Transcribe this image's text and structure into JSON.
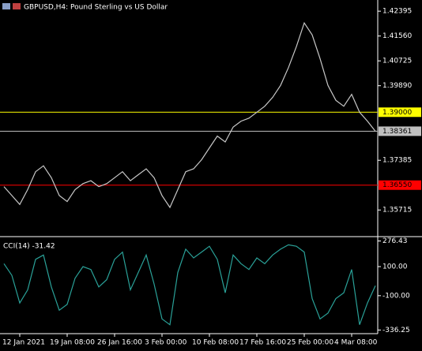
{
  "chart_data": [
    {
      "type": "line",
      "title": "GBPUSD,H4: Pound Sterling vs US Dollar",
      "categories": [
        null,
        null,
        "12 Jan 2021",
        null,
        null,
        null,
        null,
        null,
        "19 Jan 08:00",
        null,
        null,
        null,
        null,
        null,
        "26 Jan 16:00",
        null,
        null,
        null,
        null,
        null,
        "3 Feb 00:00",
        null,
        null,
        null,
        null,
        null,
        "10 Feb 08:00",
        null,
        null,
        null,
        null,
        null,
        "17 Feb 16:00",
        null,
        null,
        null,
        null,
        null,
        "25 Feb 00:00",
        null,
        null,
        null,
        null,
        null,
        "4 Mar 08:00",
        null,
        null,
        null
      ],
      "series": [
        {
          "color": "#c8c8c8",
          "values": [
            1.365,
            1.362,
            1.359,
            1.364,
            1.37,
            1.372,
            1.368,
            1.362,
            1.36,
            1.364,
            1.366,
            1.367,
            1.365,
            1.366,
            1.368,
            1.37,
            1.367,
            1.369,
            1.371,
            1.368,
            1.362,
            1.358,
            1.364,
            1.37,
            1.371,
            1.374,
            1.378,
            1.382,
            1.38,
            1.385,
            1.387,
            1.388,
            1.39,
            1.392,
            1.395,
            1.399,
            1.405,
            1.412,
            1.42,
            1.416,
            1.408,
            1.399,
            1.394,
            1.392,
            1.396,
            1.39,
            1.387,
            1.3836
          ]
        }
      ],
      "ylim": [
        1.3482,
        1.4277
      ],
      "yticks": [
        1.42395,
        {
          "value": 1.4156,
          "label": "1.41560"
        },
        1.40725,
        {
          "value": 1.3989,
          "label": "1.39890"
        },
        1.37385,
        1.35715
      ],
      "levels": [
        {
          "value": 1.39,
          "label": "1.39000",
          "color": "#ffff00"
        },
        {
          "value": 1.38361,
          "label": "1.38361",
          "color": "#c0c0c0"
        },
        {
          "value": 1.3655,
          "label": "1.36550",
          "color": "#ff0000"
        }
      ]
    },
    {
      "type": "line",
      "title": "CCI(14) -31.42",
      "series": [
        {
          "color": "#2aa198",
          "values": [
            120,
            40,
            -150,
            -60,
            150,
            180,
            -40,
            -200,
            -160,
            20,
            100,
            80,
            -40,
            10,
            150,
            200,
            -60,
            60,
            180,
            -20,
            -260,
            -300,
            60,
            220,
            160,
            200,
            240,
            150,
            -80,
            180,
            120,
            80,
            160,
            120,
            180,
            220,
            250,
            240,
            200,
            -120,
            -260,
            -220,
            -120,
            -80,
            80,
            -300,
            -150,
            -31.42
          ]
        }
      ],
      "ylim": [
        -345,
        290
      ],
      "yticks": [
        276.43,
        {
          "value": 100,
          "label": "100.00"
        },
        {
          "value": -100,
          "label": "-100.00"
        },
        -336.25
      ]
    }
  ]
}
